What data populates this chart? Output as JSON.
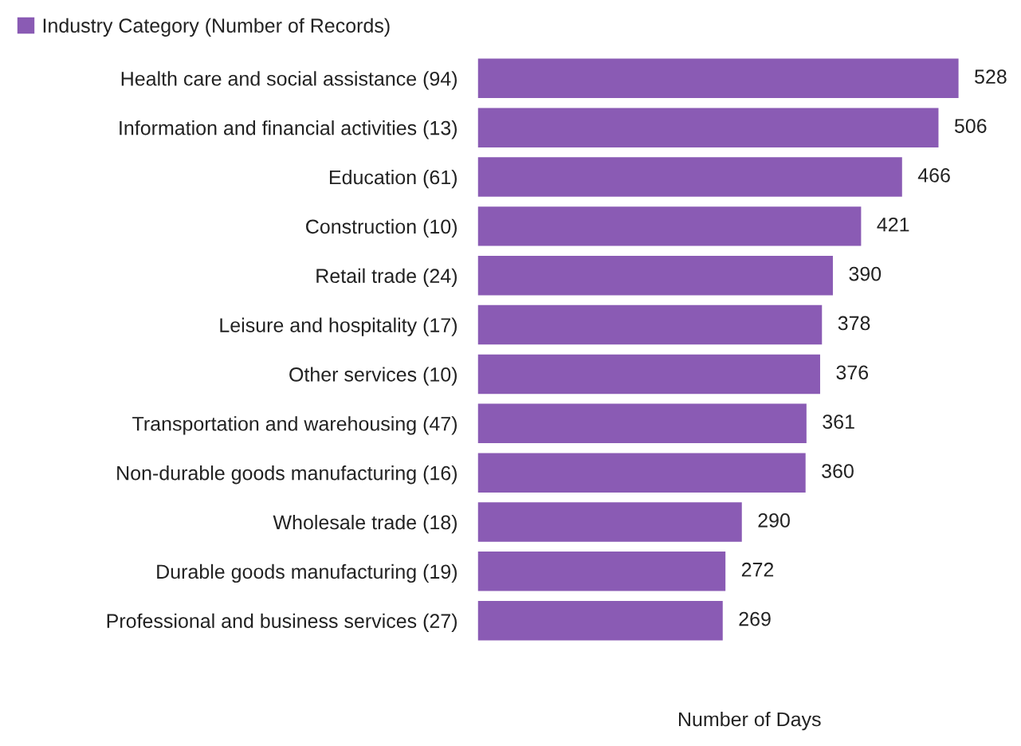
{
  "chart_data": {
    "type": "bar",
    "orientation": "horizontal",
    "xlabel": "Number of Days",
    "categories": [
      "Health care and social assistance (94)",
      "Information and financial activities (13)",
      "Education (61)",
      "Construction (10)",
      "Retail trade (24)",
      "Leisure and hospitality (17)",
      "Other services (10)",
      "Transportation and warehousing (47)",
      "Non-durable goods manufacturing (16)",
      "Wholesale trade (18)",
      "Durable goods manufacturing (19)",
      "Professional and business services (27)"
    ],
    "series": [
      {
        "name": "Industry Category (Number of Records)",
        "color": "#8a5bb4",
        "values": [
          528,
          506,
          466,
          421,
          390,
          378,
          376,
          361,
          360,
          290,
          272,
          269
        ]
      }
    ],
    "data_labels": true,
    "legend": "top left",
    "grid": false
  }
}
